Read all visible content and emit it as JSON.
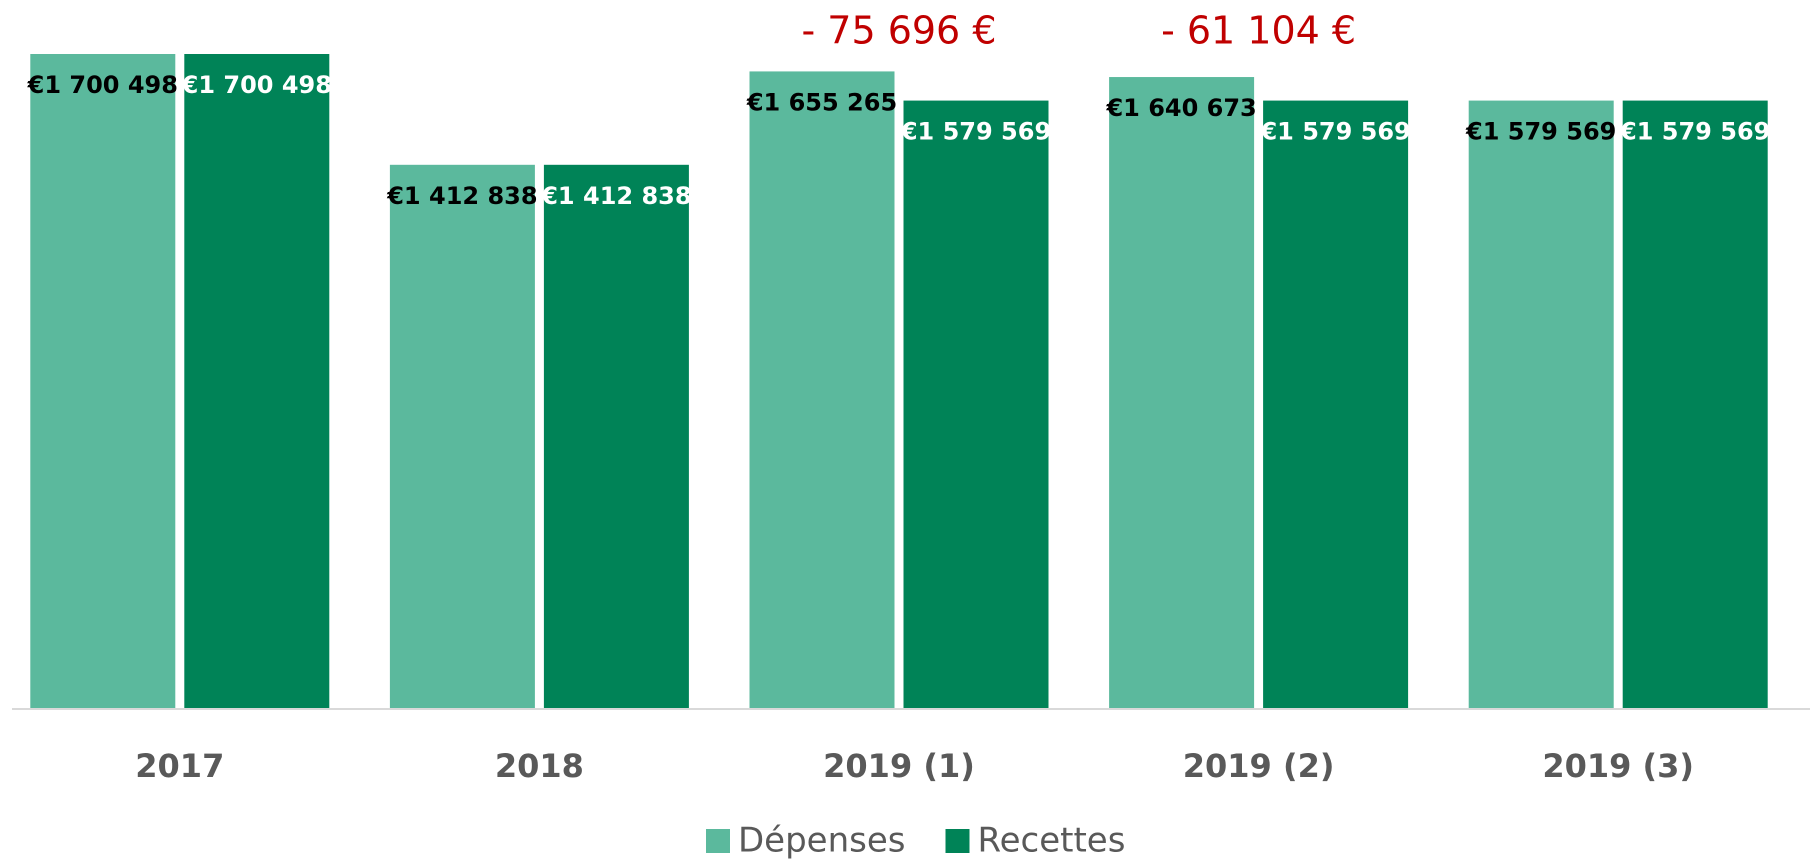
{
  "chart_data": {
    "type": "bar",
    "categories": [
      "2017",
      "2018",
      "2019 (1)",
      "2019 (2)",
      "2019 (3)"
    ],
    "series": [
      {
        "name": "Dépenses",
        "color": "#5bb99d",
        "values": [
          1700498,
          1412838,
          1655265,
          1640673,
          1579569
        ],
        "value_labels": [
          "€1 700 498",
          "€1 412 838",
          "€1 655 265",
          "€1 640 673",
          "€1 579 569"
        ]
      },
      {
        "name": "Recettes",
        "color": "#008357",
        "values": [
          1700498,
          1412838,
          1579569,
          1579569,
          1579569
        ],
        "value_labels": [
          "€1 700 498",
          "€1 412 838",
          "€1 579 569",
          "€1 579 569",
          "€1 579 569"
        ]
      }
    ],
    "annotations": [
      {
        "text": "- 75 696 €",
        "category": "2019 (1)"
      },
      {
        "text": "- 61 104 €",
        "category": "2019 (2)"
      }
    ],
    "ylim": [
      0,
      1700498
    ],
    "legend": "bottom"
  }
}
